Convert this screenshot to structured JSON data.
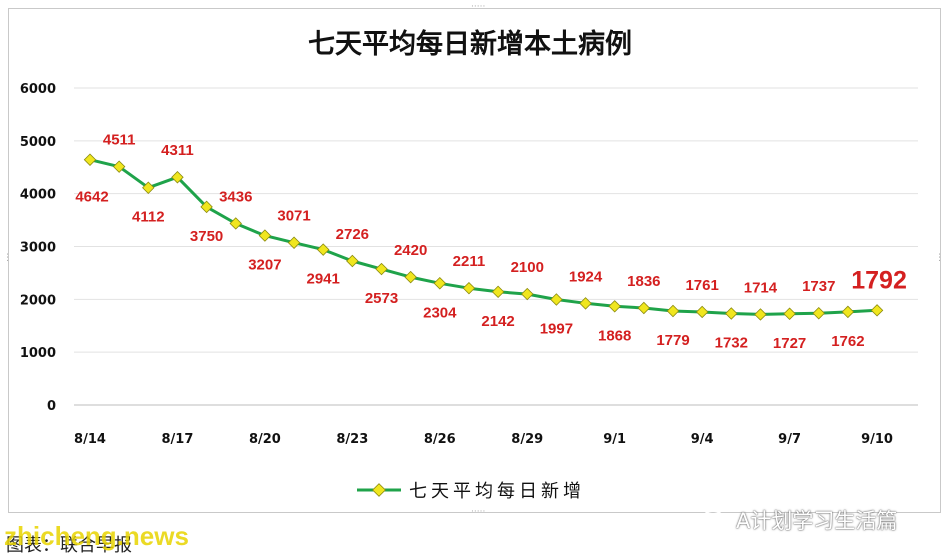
{
  "chart_data": {
    "type": "line",
    "title": "七天平均每日新增本土病例",
    "x": [
      "8/14",
      "8/15",
      "8/16",
      "8/17",
      "8/18",
      "8/19",
      "8/20",
      "8/21",
      "8/22",
      "8/23",
      "8/24",
      "8/25",
      "8/26",
      "8/27",
      "8/28",
      "8/29",
      "8/30",
      "8/31",
      "9/1",
      "9/2",
      "9/3",
      "9/4",
      "9/5",
      "9/6",
      "9/7",
      "9/8",
      "9/9",
      "9/10"
    ],
    "xtick_labels": [
      "8/14",
      "8/17",
      "8/20",
      "8/23",
      "8/26",
      "8/29",
      "9/1",
      "9/4",
      "9/7",
      "9/10"
    ],
    "series": [
      {
        "name": "七天平均每日新增",
        "color": "#1fa34a",
        "marker_color": "#f0e61e",
        "values": [
          4642,
          4511,
          4112,
          4311,
          3750,
          3436,
          3207,
          3071,
          2941,
          2726,
          2573,
          2420,
          2304,
          2211,
          2142,
          2100,
          1997,
          1924,
          1868,
          1836,
          1779,
          1761,
          1732,
          1714,
          1727,
          1737,
          1762,
          1792
        ]
      }
    ],
    "ylim": [
      0,
      6000
    ],
    "yticks": [
      "0",
      "1000",
      "2000",
      "3000",
      "4000",
      "5000",
      "6000"
    ],
    "grid": true,
    "legend_position": "bottom",
    "label_color": "#d42020"
  },
  "footer": {
    "source": "图表：联合早报",
    "watermark_left": "zhicheng.news",
    "watermark_right": "A计划学习生活篇"
  }
}
